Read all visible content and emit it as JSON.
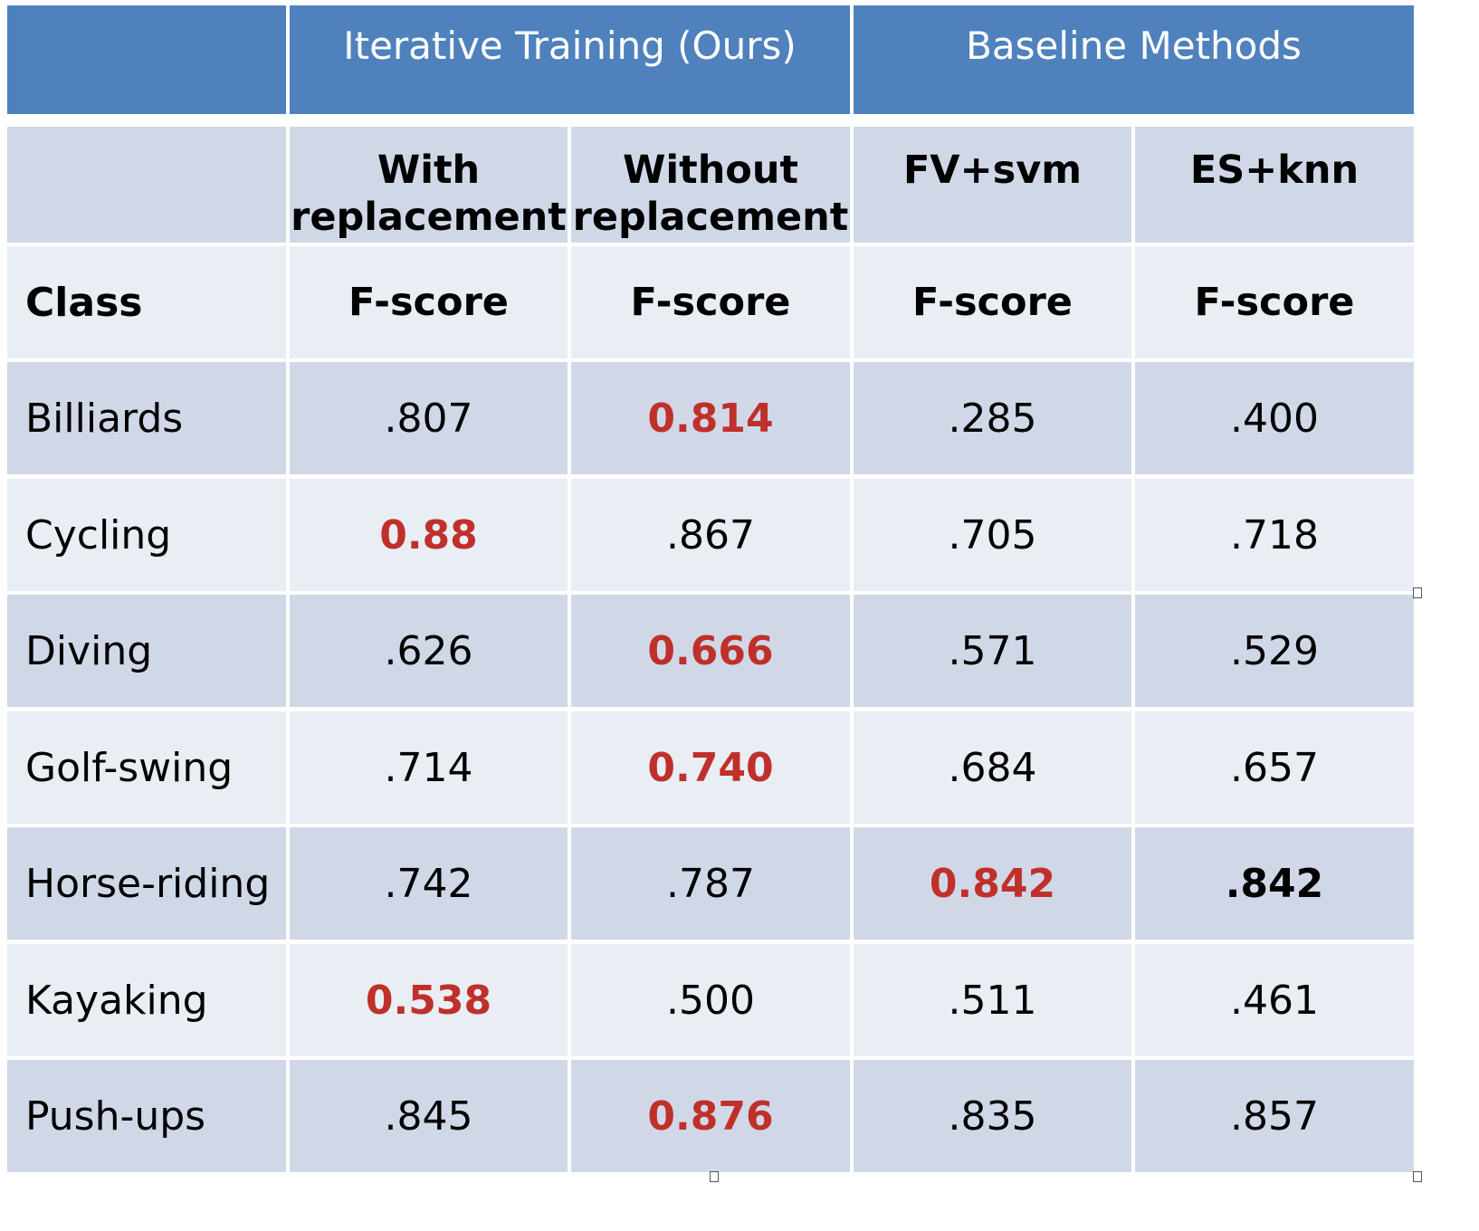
{
  "chart_data": {
    "type": "table",
    "group_headers": [
      {
        "label": "",
        "span": 1
      },
      {
        "label": "Iterative Training (Ours)",
        "span": 2
      },
      {
        "label": "Baseline Methods",
        "span": 2
      }
    ],
    "method_headers": [
      "",
      "With\nreplacement",
      "Without\nreplacement",
      "FV+svm",
      "ES+knn"
    ],
    "metric_headers": [
      "Class",
      "F-score",
      "F-score",
      "F-score",
      "F-score"
    ],
    "rows": [
      {
        "class": "Billiards",
        "values": [
          ".807",
          "0.814",
          ".285",
          ".400"
        ],
        "highlight": [
          1
        ],
        "bold": []
      },
      {
        "class": "Cycling",
        "values": [
          "0.88",
          ".867",
          ".705",
          ".718"
        ],
        "highlight": [
          0
        ],
        "bold": []
      },
      {
        "class": "Diving",
        "values": [
          ".626",
          "0.666",
          ".571",
          ".529"
        ],
        "highlight": [
          1
        ],
        "bold": []
      },
      {
        "class": "Golf-swing",
        "values": [
          ".714",
          "0.740",
          ".684",
          ".657"
        ],
        "highlight": [
          1
        ],
        "bold": []
      },
      {
        "class": "Horse-riding",
        "values": [
          ".742",
          ".787",
          "0.842",
          ".842"
        ],
        "highlight": [
          2
        ],
        "bold": [
          3
        ]
      },
      {
        "class": "Kayaking",
        "values": [
          "0.538",
          ".500",
          ".511",
          ".461"
        ],
        "highlight": [
          0
        ],
        "bold": []
      },
      {
        "class": "Push-ups",
        "values": [
          ".845",
          "0.876",
          ".835",
          ".857"
        ],
        "highlight": [
          1
        ],
        "bold": []
      }
    ],
    "colors": {
      "group_header_bg": "#4f81bd",
      "row_dark": "#d0d8e8",
      "row_light": "#e9edf4",
      "highlight_text": "#c0302a"
    }
  }
}
